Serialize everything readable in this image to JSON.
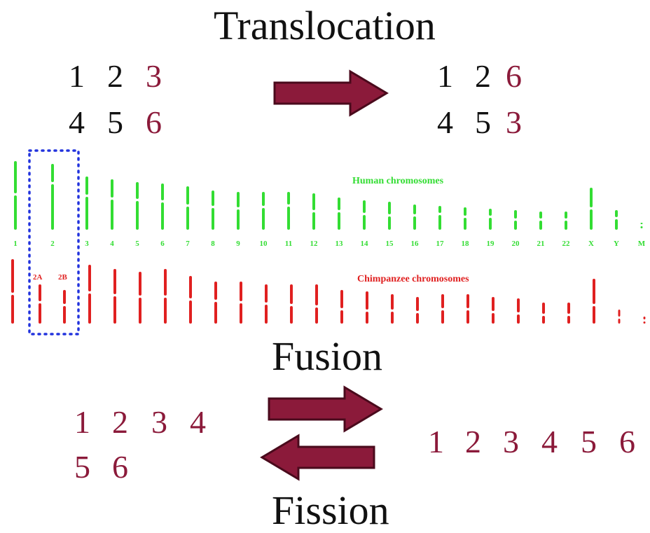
{
  "headings": {
    "translocation": "Translocation",
    "fusion": "Fusion",
    "fission": "Fission"
  },
  "colors": {
    "black": "#111111",
    "maroon": "#8b1a3a",
    "arrow_fill": "#8b1a3a",
    "arrow_stroke": "#4a0a1c",
    "human": "#33dd33",
    "chimp": "#e02020",
    "box": "#2233dd"
  },
  "translocation": {
    "before": [
      [
        {
          "t": "1",
          "c": "black"
        },
        {
          "t": "2",
          "c": "black"
        },
        {
          "t": "3",
          "c": "maroon"
        }
      ],
      [
        {
          "t": "4",
          "c": "black"
        },
        {
          "t": "5",
          "c": "black"
        },
        {
          "t": "6",
          "c": "maroon"
        }
      ]
    ],
    "after": [
      [
        {
          "t": "1",
          "c": "black"
        },
        {
          "t": "2",
          "c": "black"
        },
        {
          "t": "6",
          "c": "maroon"
        }
      ],
      [
        {
          "t": "4",
          "c": "black"
        },
        {
          "t": "5",
          "c": "black"
        },
        {
          "t": "3",
          "c": "maroon"
        }
      ]
    ]
  },
  "fusion_fission": {
    "left_rows": [
      [
        "1",
        "2",
        "3",
        "4"
      ],
      [
        "5",
        "6"
      ]
    ],
    "right_row": [
      "1",
      "2",
      "3",
      "4",
      "5",
      "6"
    ]
  },
  "human": {
    "title": "Human chromosomes",
    "labels": [
      "1",
      "2",
      "3",
      "4",
      "5",
      "6",
      "7",
      "8",
      "9",
      "10",
      "11",
      "12",
      "13",
      "14",
      "15",
      "16",
      "17",
      "18",
      "19",
      "20",
      "21",
      "22",
      "X",
      "Y",
      "M"
    ]
  },
  "chimp": {
    "title": "Chimpanzee chromosomes",
    "labels": [
      "2A",
      "2B"
    ]
  }
}
